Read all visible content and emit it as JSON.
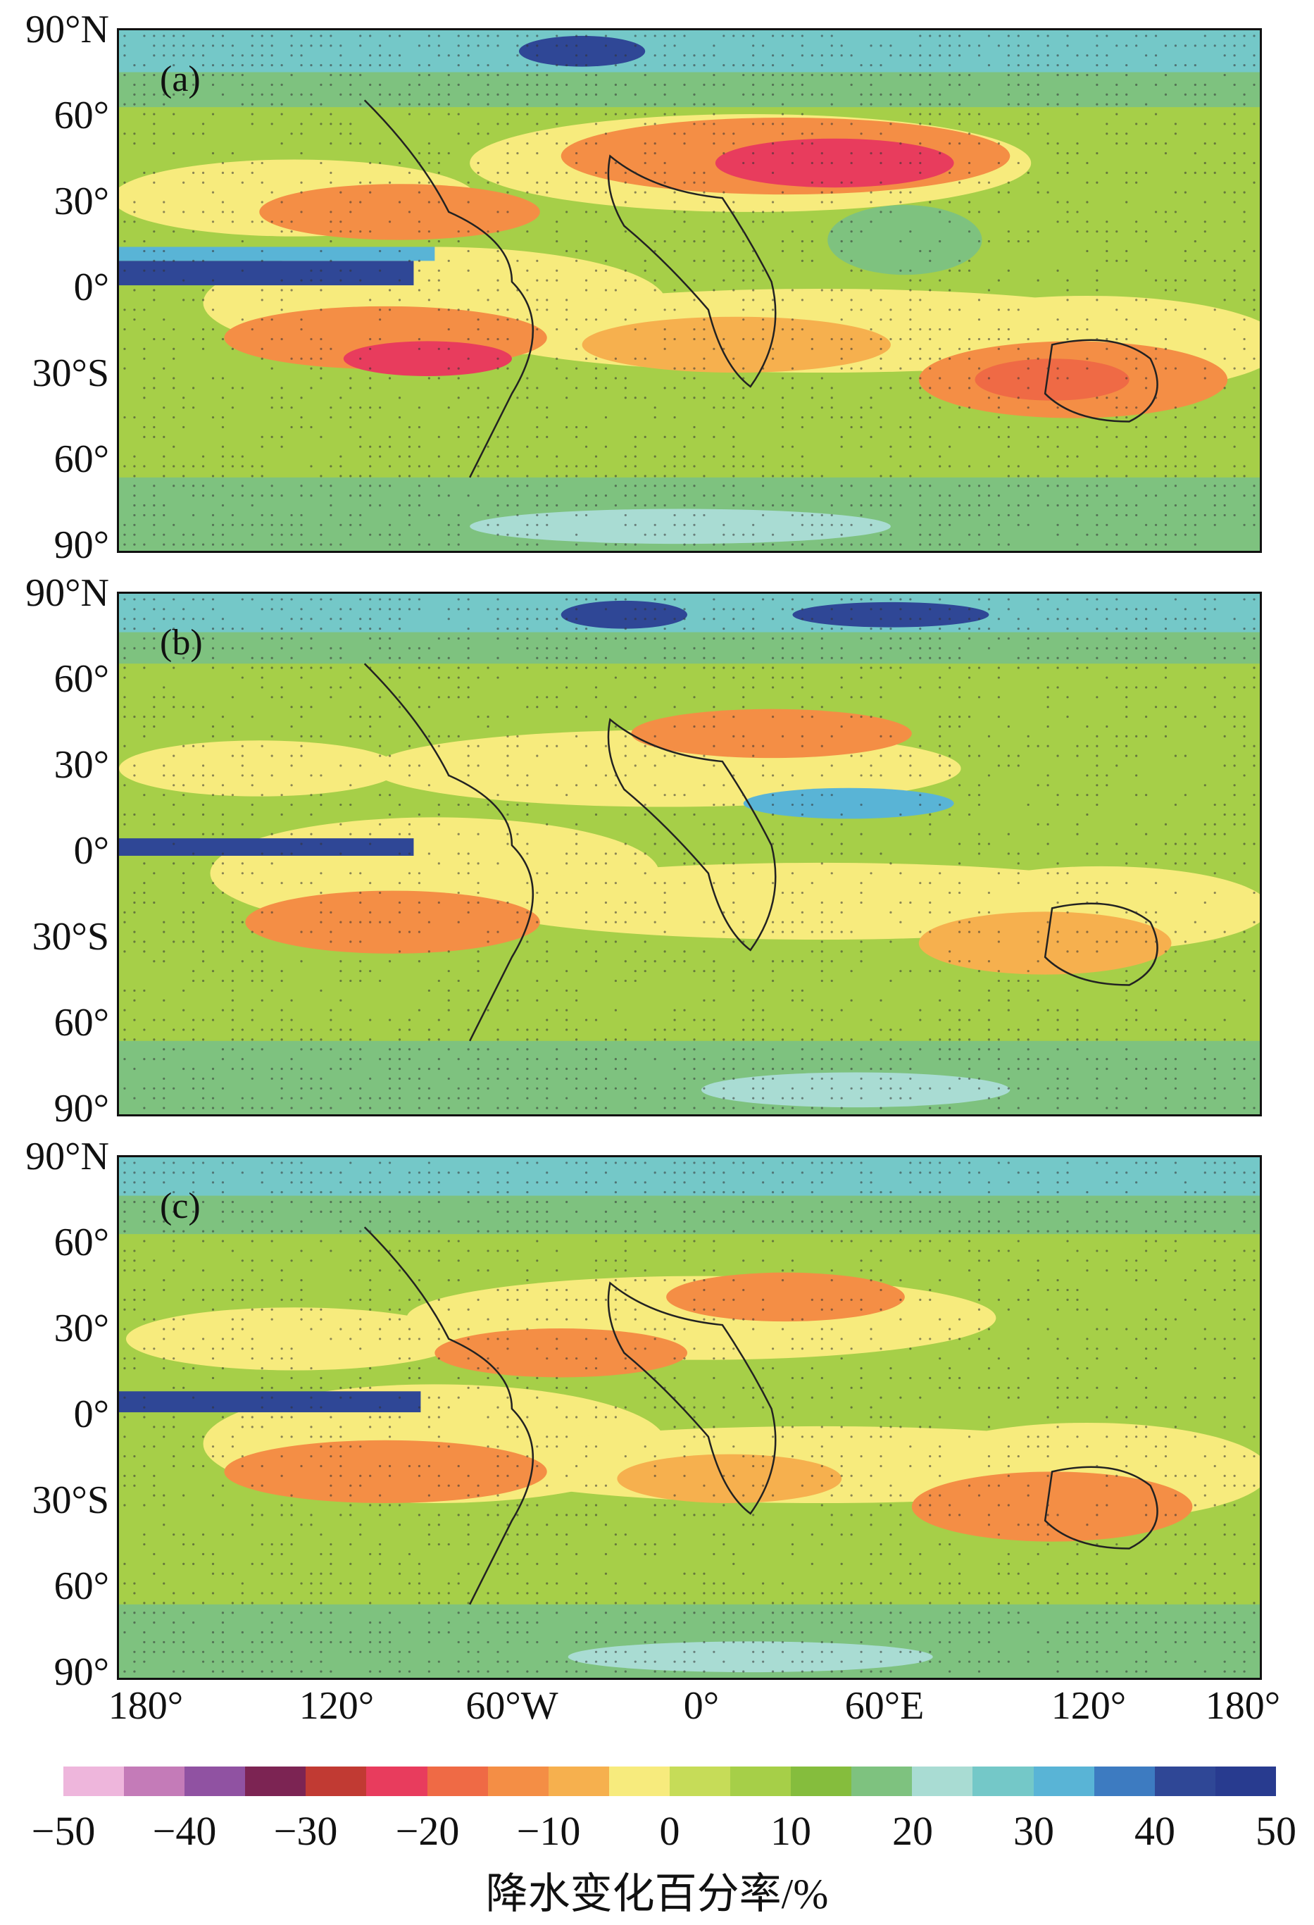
{
  "panels": [
    {
      "label": "(a)"
    },
    {
      "label": "(b)"
    },
    {
      "label": "(c)"
    }
  ],
  "lat_labels": [
    "90°N",
    "60°",
    "30°",
    "0°",
    "30°S",
    "60°",
    "90°"
  ],
  "lon_labels": [
    "180°",
    "120°",
    "60°W",
    "0°",
    "60°E",
    "120°",
    "180°"
  ],
  "colorbar": {
    "ticks": [
      "−50",
      "−40",
      "−30",
      "−20",
      "−10",
      "0",
      "10",
      "20",
      "30",
      "40",
      "50"
    ],
    "colors": [
      "#eeb6dc",
      "#c47bb8",
      "#9052a2",
      "#7c2453",
      "#c13a33",
      "#e83c5d",
      "#ef6a45",
      "#f48e45",
      "#f6b04e",
      "#f7eb7d",
      "#c6dc58",
      "#a6cf48",
      "#85bd3d",
      "#7ec27f",
      "#a9dcd3",
      "#74c8c8",
      "#59b4d6",
      "#3d7bc1",
      "#2f4796",
      "#283b8f"
    ],
    "caption": "降水变化百分率/%"
  }
}
